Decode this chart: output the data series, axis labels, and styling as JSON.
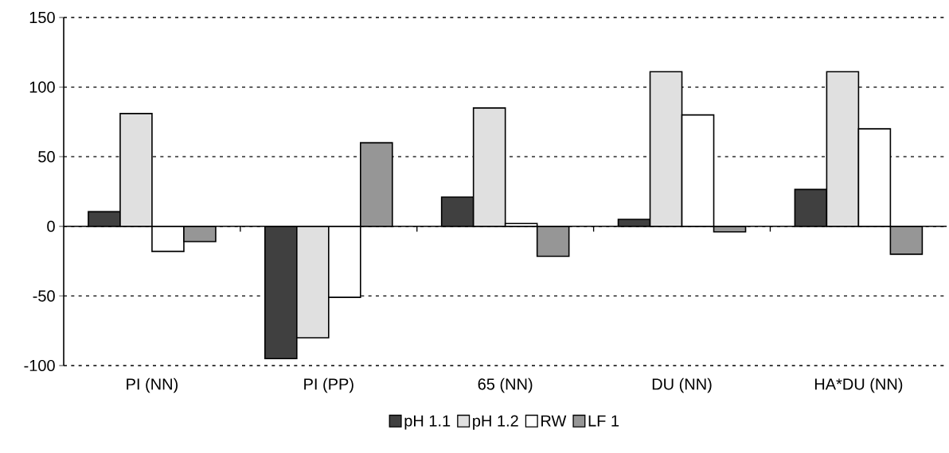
{
  "chart_data": {
    "type": "bar",
    "categories": [
      "PI (NN)",
      "PI (PP)",
      "65 (NN)",
      "DU (NN)",
      "HA*DU (NN)"
    ],
    "series": [
      {
        "name": "pH 1.1",
        "color": "#404040",
        "values": [
          10.5,
          -95,
          21,
          5,
          26.5
        ]
      },
      {
        "name": "pH 1.2",
        "color": "#e0e0e0",
        "values": [
          81,
          -80,
          85,
          111,
          111
        ]
      },
      {
        "name": "RW",
        "color": "#ffffff",
        "values": [
          -18,
          -51,
          2,
          80,
          70
        ]
      },
      {
        "name": "LF 1",
        "color": "#969696",
        "values": [
          -11,
          60,
          -21.5,
          -4,
          -20
        ]
      }
    ],
    "ylim": [
      -100,
      150
    ],
    "yticks": [
      -100,
      -50,
      0,
      50,
      100,
      150
    ],
    "grid": "y",
    "legend": "bottom"
  }
}
